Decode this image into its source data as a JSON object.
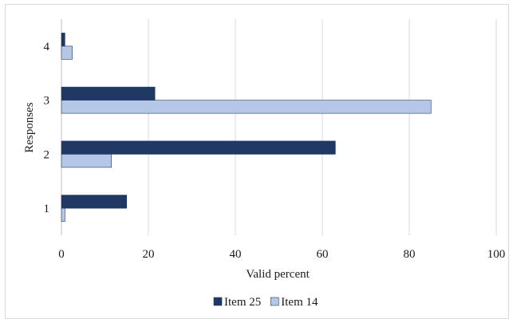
{
  "chart_data": {
    "type": "bar",
    "orientation": "horizontal",
    "title": "",
    "xlabel": "Valid percent",
    "ylabel": "Responses",
    "categories": [
      "1",
      "2",
      "3",
      "4"
    ],
    "series": [
      {
        "name": "Item 25",
        "color": "#203864",
        "values": [
          15,
          63,
          21.5,
          0.8
        ]
      },
      {
        "name": "Item 14",
        "color": "#b4c7e7",
        "values": [
          0.8,
          11.5,
          85,
          2.5
        ]
      }
    ],
    "xlim": [
      0,
      100
    ],
    "xticks": [
      "0",
      "20",
      "40",
      "60",
      "80",
      "100"
    ],
    "grid": "vertical",
    "legend_position": "bottom"
  }
}
